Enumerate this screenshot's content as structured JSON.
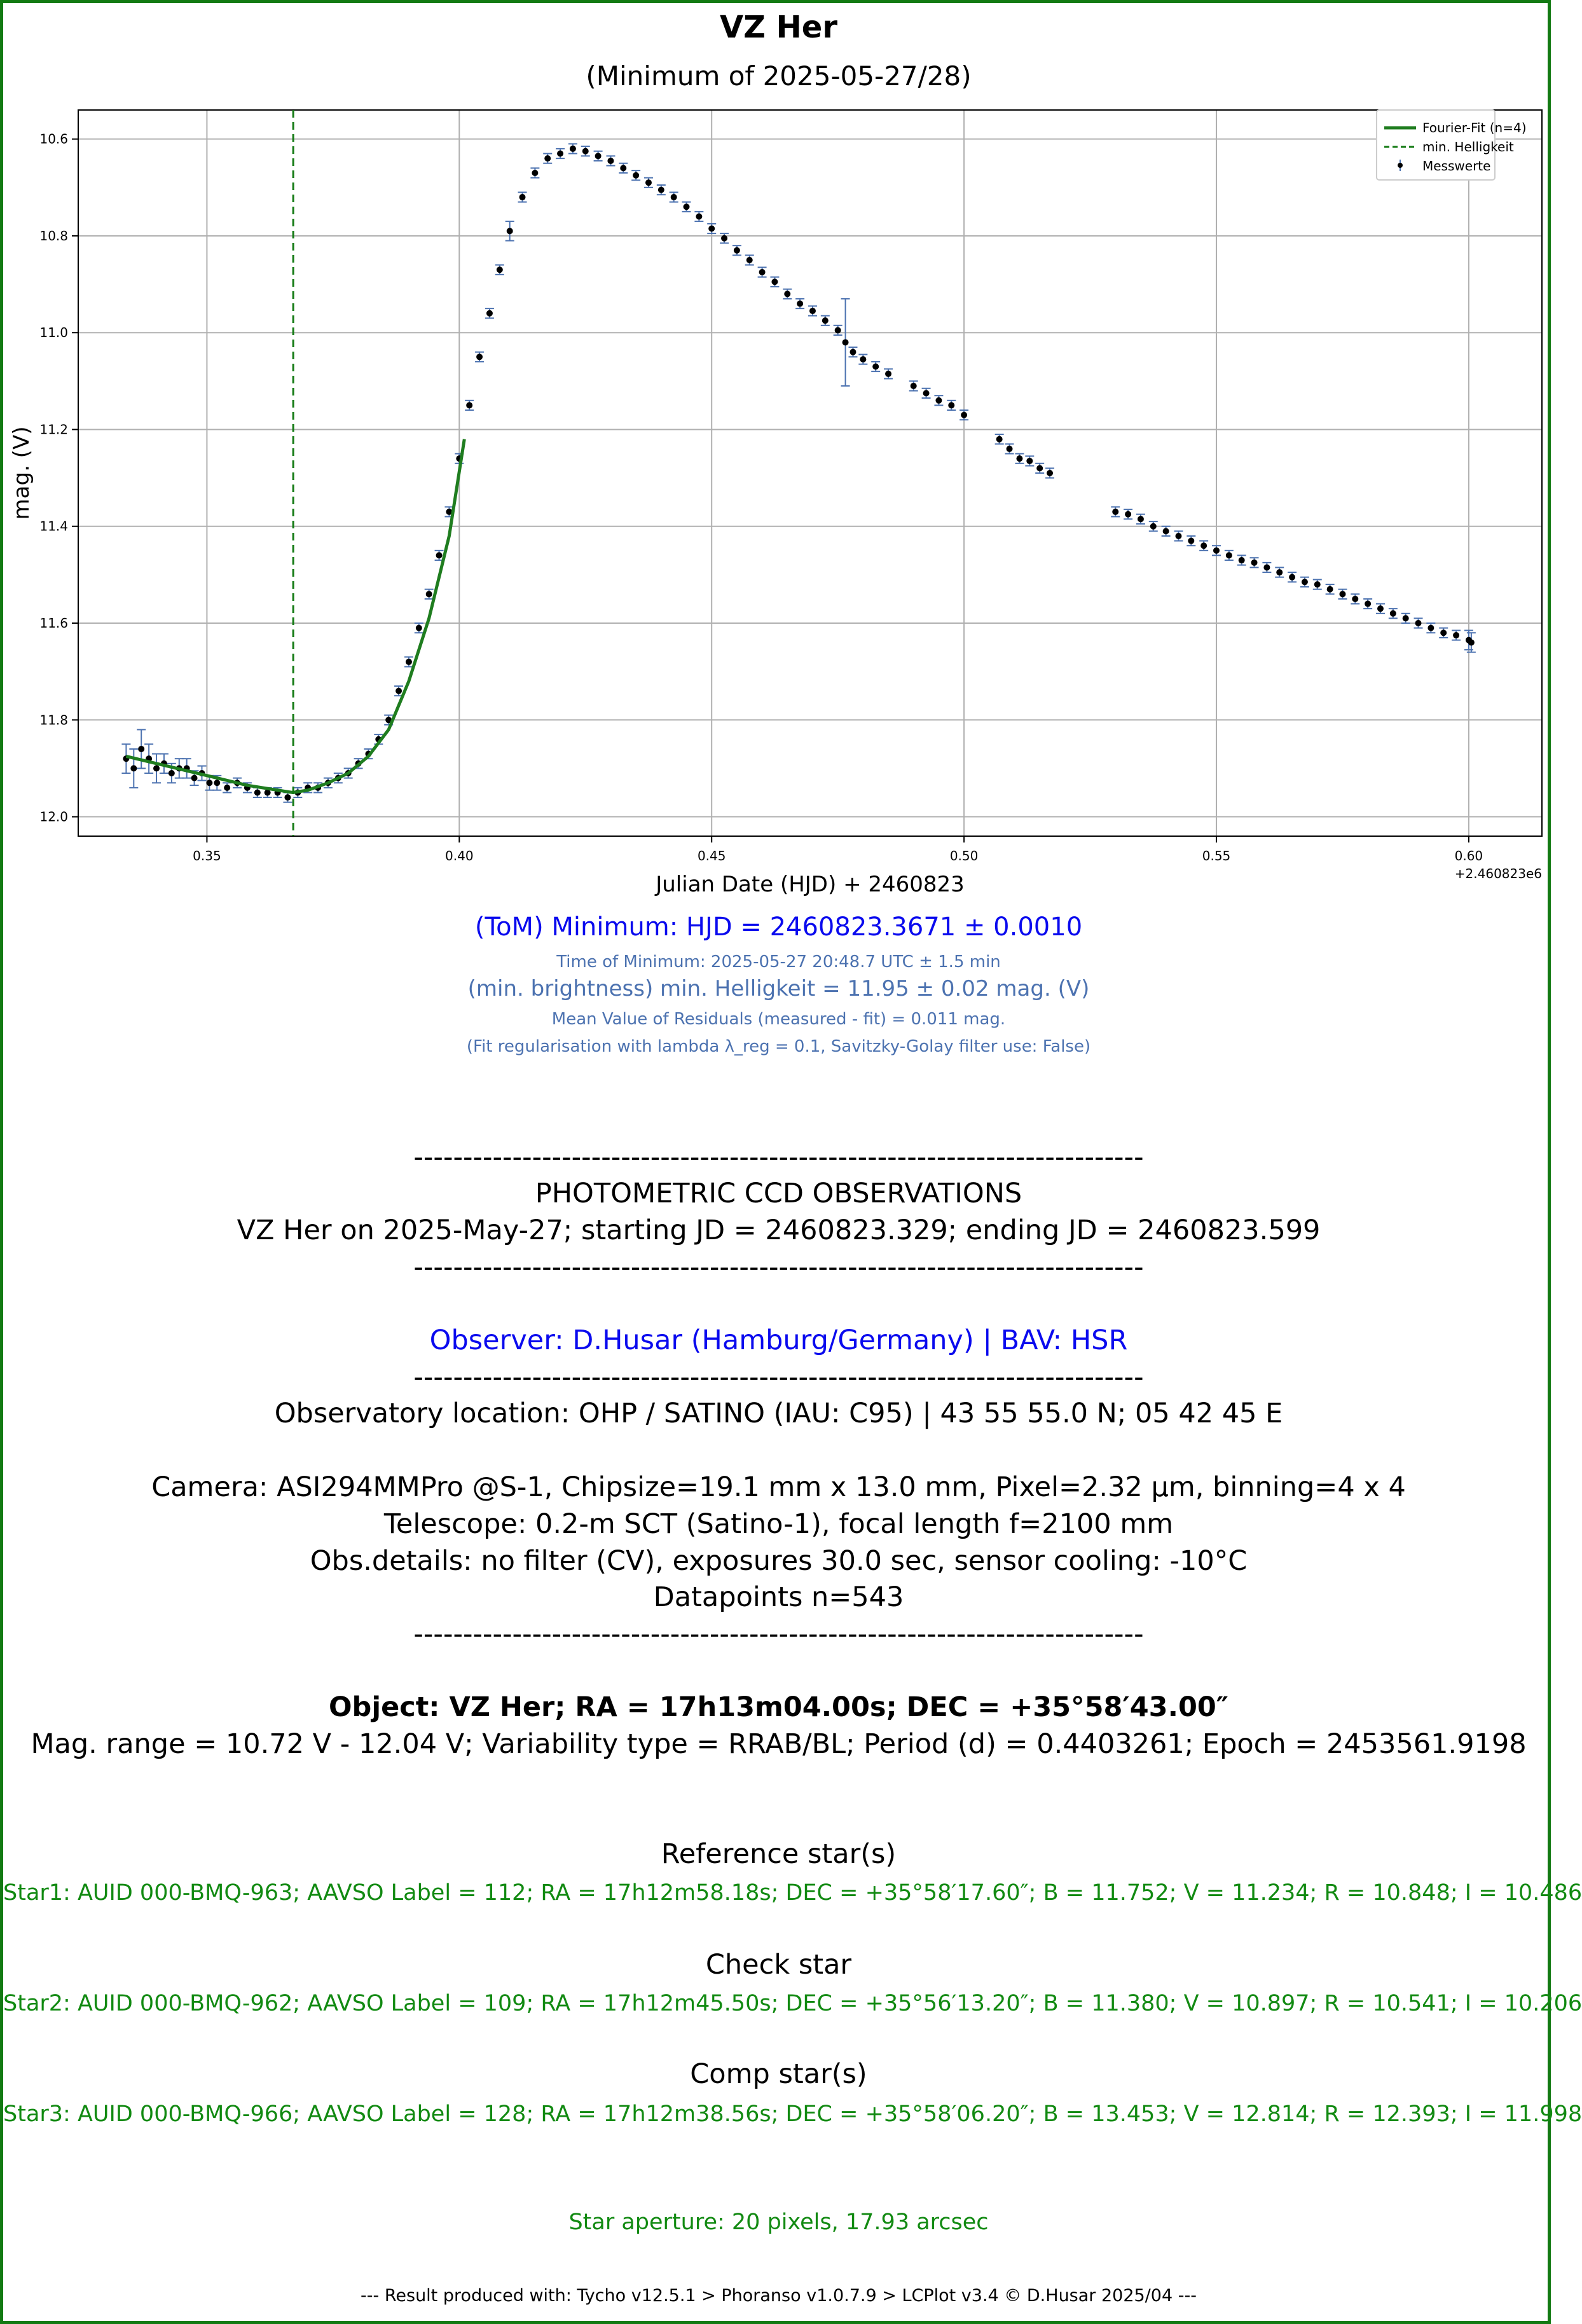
{
  "title": "VZ Her",
  "subtitle": "(Minimum of 2025-05-27/28)",
  "chart_data": {
    "type": "scatter",
    "xlabel": "Julian Date (HJD) + 2460823",
    "ylabel": "mag. (V)",
    "x_offset_label": "+2.460823e6",
    "xlim": [
      0.3245,
      0.6145
    ],
    "ylim": [
      12.04,
      10.54
    ],
    "y_inverted": true,
    "xticks": [
      0.35,
      0.4,
      0.45,
      0.5,
      0.55,
      0.6
    ],
    "xtick_labels": [
      "0.35",
      "0.40",
      "0.45",
      "0.50",
      "0.55",
      "0.60"
    ],
    "yticks": [
      10.6,
      10.8,
      11.0,
      11.2,
      11.4,
      11.6,
      11.8,
      12.0
    ],
    "ytick_labels": [
      "10.6",
      "10.8",
      "11.0",
      "11.2",
      "11.4",
      "11.6",
      "11.8",
      "12.0"
    ],
    "grid": true,
    "legend_position": "top-right",
    "legend": [
      "Fourier-Fit (n=4)",
      "min. Helligkeit",
      "Messwerte"
    ],
    "colors": {
      "fit": "#1f7d1f",
      "minline": "#137a13",
      "points": "#000000",
      "errorbars": "#4c72b0",
      "grid": "#b0b0b0"
    },
    "series": [
      {
        "name": "Messwerte",
        "kind": "errorbar-points",
        "x": [
          0.334,
          0.3355,
          0.337,
          0.3385,
          0.34,
          0.3415,
          0.343,
          0.3445,
          0.346,
          0.3475,
          0.349,
          0.3505,
          0.352,
          0.354,
          0.356,
          0.358,
          0.36,
          0.362,
          0.364,
          0.366,
          0.368,
          0.37,
          0.372,
          0.374,
          0.376,
          0.378,
          0.38,
          0.382,
          0.384,
          0.386,
          0.388,
          0.39,
          0.392,
          0.394,
          0.396,
          0.398,
          0.4,
          0.402,
          0.404,
          0.406,
          0.408,
          0.41,
          0.4125,
          0.415,
          0.4175,
          0.42,
          0.4225,
          0.425,
          0.4275,
          0.43,
          0.4325,
          0.435,
          0.4375,
          0.44,
          0.4425,
          0.445,
          0.4475,
          0.45,
          0.4525,
          0.455,
          0.4575,
          0.46,
          0.4625,
          0.465,
          0.4675,
          0.47,
          0.4725,
          0.475,
          0.4765,
          0.478,
          0.48,
          0.4825,
          0.485,
          0.49,
          0.4925,
          0.495,
          0.4975,
          0.5,
          0.507,
          0.509,
          0.511,
          0.513,
          0.515,
          0.517,
          0.53,
          0.5325,
          0.535,
          0.5375,
          0.54,
          0.5425,
          0.545,
          0.5475,
          0.55,
          0.5525,
          0.555,
          0.5575,
          0.56,
          0.5625,
          0.565,
          0.5675,
          0.57,
          0.5725,
          0.575,
          0.5775,
          0.58,
          0.5825,
          0.585,
          0.5875,
          0.59,
          0.5925,
          0.595,
          0.5975,
          0.6,
          0.6005
        ],
        "y": [
          11.88,
          11.9,
          11.86,
          11.88,
          11.9,
          11.89,
          11.91,
          11.9,
          11.9,
          11.92,
          11.91,
          11.93,
          11.93,
          11.94,
          11.93,
          11.94,
          11.95,
          11.95,
          11.95,
          11.96,
          11.95,
          11.94,
          11.94,
          11.93,
          11.92,
          11.91,
          11.89,
          11.87,
          11.84,
          11.8,
          11.74,
          11.68,
          11.61,
          11.54,
          11.46,
          11.37,
          11.26,
          11.15,
          11.05,
          10.96,
          10.87,
          10.79,
          10.72,
          10.67,
          10.64,
          10.63,
          10.62,
          10.625,
          10.635,
          10.645,
          10.66,
          10.675,
          10.69,
          10.705,
          10.72,
          10.74,
          10.76,
          10.785,
          10.805,
          10.83,
          10.85,
          10.875,
          10.895,
          10.92,
          10.94,
          10.955,
          10.975,
          10.995,
          11.02,
          11.04,
          11.055,
          11.07,
          11.085,
          11.11,
          11.125,
          11.14,
          11.15,
          11.17,
          11.22,
          11.24,
          11.26,
          11.265,
          11.28,
          11.29,
          11.37,
          11.375,
          11.385,
          11.4,
          11.41,
          11.42,
          11.43,
          11.44,
          11.45,
          11.46,
          11.47,
          11.475,
          11.485,
          11.495,
          11.505,
          11.515,
          11.52,
          11.53,
          11.54,
          11.55,
          11.56,
          11.57,
          11.58,
          11.59,
          11.6,
          11.61,
          11.62,
          11.625,
          11.635,
          11.64
        ],
        "yerr": [
          0.03,
          0.04,
          0.04,
          0.03,
          0.03,
          0.02,
          0.02,
          0.02,
          0.02,
          0.015,
          0.015,
          0.015,
          0.015,
          0.01,
          0.01,
          0.01,
          0.01,
          0.01,
          0.01,
          0.01,
          0.01,
          0.01,
          0.01,
          0.01,
          0.01,
          0.01,
          0.01,
          0.01,
          0.01,
          0.01,
          0.01,
          0.01,
          0.01,
          0.01,
          0.01,
          0.01,
          0.01,
          0.01,
          0.01,
          0.01,
          0.01,
          0.02,
          0.01,
          0.01,
          0.01,
          0.01,
          0.01,
          0.01,
          0.01,
          0.01,
          0.01,
          0.01,
          0.01,
          0.01,
          0.01,
          0.01,
          0.01,
          0.01,
          0.01,
          0.01,
          0.01,
          0.01,
          0.01,
          0.01,
          0.01,
          0.01,
          0.01,
          0.01,
          0.09,
          0.01,
          0.01,
          0.01,
          0.01,
          0.01,
          0.01,
          0.01,
          0.01,
          0.01,
          0.01,
          0.01,
          0.01,
          0.01,
          0.01,
          0.01,
          0.01,
          0.01,
          0.01,
          0.01,
          0.01,
          0.01,
          0.01,
          0.01,
          0.01,
          0.01,
          0.01,
          0.01,
          0.01,
          0.01,
          0.01,
          0.01,
          0.01,
          0.01,
          0.01,
          0.01,
          0.01,
          0.01,
          0.01,
          0.01,
          0.01,
          0.01,
          0.01,
          0.01,
          0.02,
          0.02
        ]
      },
      {
        "name": "Fourier-Fit (n=4)",
        "kind": "line",
        "x": [
          0.334,
          0.34,
          0.346,
          0.352,
          0.358,
          0.364,
          0.367,
          0.37,
          0.374,
          0.378,
          0.382,
          0.386,
          0.39,
          0.394,
          0.398,
          0.401
        ],
        "y": [
          11.875,
          11.89,
          11.905,
          11.92,
          11.935,
          11.945,
          11.95,
          11.945,
          11.93,
          11.91,
          11.875,
          11.82,
          11.72,
          11.59,
          11.42,
          11.22
        ]
      },
      {
        "name": "min. Helligkeit",
        "kind": "vline",
        "x": 0.3671
      }
    ]
  },
  "results": {
    "minimum": "(ToM) Minimum: HJD = 2460823.3671 ± 0.0010",
    "time_of_minimum": "Time of Minimum:   2025-05-27   20:48.7 UTC ± 1.5 min",
    "min_brightness": "(min. brightness) min. Helligkeit = 11.95 ± 0.02 mag. (V)",
    "residuals": "Mean Value of Residuals (measured - fit) = 0.011 mag.",
    "fit_reg": "(Fit regularisation with lambda λ_reg = 0.1, Savitzky-Golay filter use: False)"
  },
  "observations": {
    "separator": "--------------------------------------------------------------------------",
    "heading": "PHOTOMETRIC CCD OBSERVATIONS",
    "range": "VZ Her on 2025-May-27; starting JD = 2460823.329; ending JD = 2460823.599",
    "observer": "Observer: D.Husar (Hamburg/Germany) | BAV: HSR",
    "location": "Observatory location: OHP / SATINO (IAU: C95) | 43 55 55.0 N; 05 42 45 E",
    "camera": "Camera: ASI294MMPro @S-1, Chipsize=19.1 mm x 13.0 mm, Pixel=2.32 µm, binning=4 x 4",
    "telescope": "Telescope: 0.2-m SCT (Satino-1), focal length f=2100 mm",
    "obs_details": "Obs.details: no filter (CV), exposures 30.0 sec, sensor cooling: -10°C",
    "datapoints": "Datapoints n=543"
  },
  "object": {
    "line1": "Object: VZ Her; RA = 17h13m04.00s; DEC = +35°58′43.00″",
    "line2": "Mag. range = 10.72 V - 12.04 V; Variability type = RRAB/BL; Period (d) = 0.4403261; Epoch = 2453561.9198"
  },
  "stars": {
    "ref_heading": "Reference star(s)",
    "ref": "Star1: AUID 000-BMQ-963; AAVSO Label = 112; RA = 17h12m58.18s; DEC = +35°58′17.60″; B = 11.752; V = 11.234; R = 10.848; I = 10.486",
    "check_heading": "Check star",
    "check": "Star2: AUID 000-BMQ-962; AAVSO Label = 109; RA = 17h12m45.50s; DEC = +35°56′13.20″; B = 11.380; V = 10.897; R = 10.541; I = 10.206",
    "comp_heading": "Comp star(s)",
    "comp": "Star3: AUID 000-BMQ-966; AAVSO Label = 128; RA = 17h12m38.56s; DEC = +35°58′06.20″; B = 13.453; V = 12.814; R = 12.393; I = 11.998",
    "aperture": "Star aperture: 20 pixels, 17.93 arcsec"
  },
  "footer": "---  Result produced with: Tycho v12.5.1 > Phoranso v1.0.7.9 > LCPlot v3.4 © D.Husar 2025/04  ---"
}
